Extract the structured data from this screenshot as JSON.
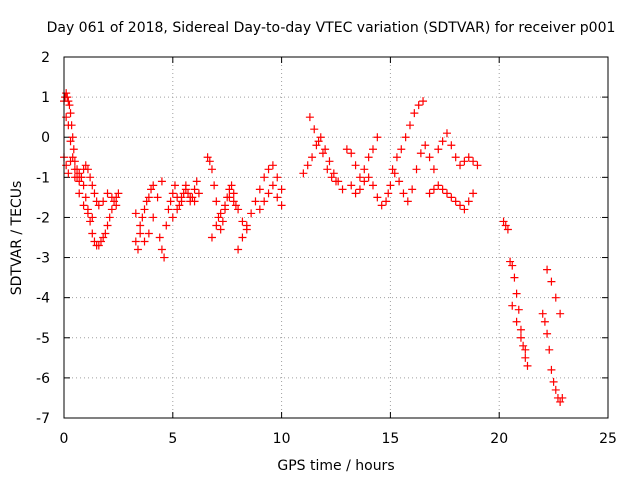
{
  "chart_data": {
    "type": "scatter",
    "title": "Day 061 of 2018, Sidereal Day-to-day VTEC variation (SDTVAR) for receiver p001",
    "xlabel": "GPS time / hours",
    "ylabel": "SDTVAR / TECUs",
    "xlim": [
      0,
      25
    ],
    "ylim": [
      -7,
      2
    ],
    "xticks": [
      "0",
      "5",
      "10",
      "15",
      "20",
      "25"
    ],
    "yticks": [
      "-7",
      "-6",
      "-5",
      "-4",
      "-3",
      "-2",
      "-1",
      "0",
      "1",
      "2"
    ],
    "grid": true,
    "marker": "+",
    "color": "#ff0000",
    "series": [
      {
        "name": "p001",
        "x": [
          0.0,
          0.05,
          0.1,
          0.15,
          0.2,
          0.25,
          0.3,
          0.35,
          0.4,
          0.45,
          0.5,
          0.6,
          0.7,
          0.8,
          0.9,
          1.0,
          1.1,
          1.2,
          1.3,
          1.4,
          1.5,
          1.6,
          1.7,
          1.8,
          1.9,
          2.0,
          2.1,
          2.2,
          2.3,
          2.4,
          2.5,
          0.1,
          0.2,
          0.3,
          0.4,
          0.5,
          0.6,
          0.7,
          0.8,
          0.9,
          1.0,
          1.1,
          1.2,
          1.3,
          1.4,
          1.5,
          1.6,
          1.8,
          2.0,
          2.2,
          2.4,
          0.0,
          0.1,
          0.2,
          0.3,
          0.5,
          0.7,
          0.9,
          1.1,
          1.3,
          3.3,
          3.4,
          3.5,
          3.6,
          3.7,
          3.8,
          3.9,
          4.0,
          4.1,
          3.3,
          3.5,
          3.7,
          3.9,
          4.1,
          4.3,
          4.5,
          4.4,
          4.5,
          4.6,
          4.7,
          4.8,
          4.9,
          5.0,
          5.1,
          5.2,
          5.3,
          5.4,
          5.5,
          5.6,
          5.7,
          5.8,
          5.9,
          6.0,
          6.1,
          5.0,
          5.2,
          5.4,
          5.6,
          5.8,
          6.0,
          6.2,
          6.6,
          6.7,
          6.8,
          6.9,
          7.0,
          7.1,
          7.2,
          7.3,
          7.4,
          7.5,
          7.6,
          7.7,
          7.8,
          7.9,
          6.8,
          7.0,
          7.2,
          7.4,
          7.6,
          7.8,
          8.0,
          8.2,
          8.4,
          8.0,
          8.2,
          8.4,
          8.6,
          8.8,
          9.0,
          9.2,
          9.4,
          9.6,
          9.8,
          10.0,
          9.0,
          9.2,
          9.4,
          9.6,
          9.8,
          10.0,
          11.0,
          11.2,
          11.4,
          11.6,
          11.8,
          12.0,
          12.2,
          12.4,
          12.6,
          12.8,
          11.3,
          11.5,
          11.7,
          11.9,
          12.1,
          12.3,
          12.5,
          13.0,
          13.2,
          13.4,
          13.6,
          13.8,
          14.0,
          14.2,
          14.4,
          13.2,
          13.4,
          13.6,
          13.8,
          14.0,
          14.2,
          14.4,
          14.6,
          14.8,
          14.9,
          15.0,
          15.1,
          15.3,
          15.5,
          15.7,
          15.9,
          16.1,
          16.3,
          16.5,
          15.2,
          15.4,
          15.6,
          15.8,
          16.0,
          16.2,
          16.4,
          16.6,
          16.8,
          17.0,
          17.2,
          17.4,
          17.6,
          17.8,
          18.0,
          18.2,
          18.4,
          18.6,
          18.8,
          19.0,
          16.8,
          17.0,
          17.2,
          17.4,
          17.6,
          17.8,
          18.0,
          18.2,
          18.4,
          18.6,
          18.8,
          20.2,
          20.3,
          20.4,
          20.5,
          20.6,
          20.7,
          20.8,
          20.9,
          21.0,
          21.1,
          21.2,
          21.3,
          20.6,
          20.8,
          21.0,
          21.2,
          22.0,
          22.1,
          22.2,
          22.3,
          22.4,
          22.5,
          22.6,
          22.7,
          22.8,
          22.9,
          22.2,
          22.4,
          22.6,
          22.8
        ],
        "y": [
          0.9,
          1.0,
          1.1,
          1.0,
          0.9,
          0.8,
          0.6,
          0.3,
          0.0,
          -0.3,
          -0.6,
          -0.8,
          -0.9,
          -1.0,
          -1.2,
          -1.5,
          -1.8,
          -2.1,
          -2.4,
          -2.6,
          -2.7,
          -2.7,
          -2.6,
          -2.5,
          -2.4,
          -2.2,
          -2.0,
          -1.8,
          -1.6,
          -1.5,
          -1.4,
          0.5,
          0.3,
          -0.1,
          -0.5,
          -0.8,
          -1.0,
          -1.1,
          -1.0,
          -0.8,
          -0.7,
          -0.8,
          -1.0,
          -1.2,
          -1.4,
          -1.6,
          -1.7,
          -1.6,
          -1.4,
          -1.5,
          -1.7,
          -0.5,
          -0.7,
          -0.9,
          -0.6,
          -1.0,
          -1.4,
          -1.7,
          -1.9,
          -2.0,
          -2.6,
          -2.8,
          -2.4,
          -2.0,
          -1.8,
          -1.6,
          -1.5,
          -1.3,
          -1.2,
          -1.9,
          -2.2,
          -2.6,
          -2.4,
          -2.0,
          -1.5,
          -1.1,
          -2.5,
          -2.8,
          -3.0,
          -2.2,
          -1.8,
          -1.6,
          -1.4,
          -1.2,
          -1.5,
          -1.7,
          -1.6,
          -1.4,
          -1.2,
          -1.4,
          -1.6,
          -1.5,
          -1.3,
          -1.1,
          -2.0,
          -1.8,
          -1.5,
          -1.3,
          -1.5,
          -1.6,
          -1.4,
          -0.5,
          -0.6,
          -0.8,
          -1.2,
          -1.6,
          -2.0,
          -2.3,
          -2.1,
          -1.8,
          -1.5,
          -1.3,
          -1.2,
          -1.4,
          -1.7,
          -2.5,
          -2.2,
          -1.9,
          -1.7,
          -1.5,
          -1.6,
          -1.8,
          -2.1,
          -2.3,
          -2.8,
          -2.5,
          -2.2,
          -1.9,
          -1.6,
          -1.3,
          -1.0,
          -0.8,
          -0.7,
          -1.0,
          -1.3,
          -1.8,
          -1.6,
          -1.4,
          -1.2,
          -1.5,
          -1.7,
          -0.9,
          -0.7,
          -0.5,
          -0.2,
          0.0,
          -0.3,
          -0.6,
          -0.9,
          -1.1,
          -1.3,
          0.5,
          0.2,
          -0.1,
          -0.4,
          -0.8,
          -1.0,
          -1.1,
          -0.3,
          -0.4,
          -0.7,
          -1.0,
          -0.8,
          -0.5,
          -0.3,
          0.0,
          -1.2,
          -1.4,
          -1.3,
          -1.1,
          -1.0,
          -1.2,
          -1.5,
          -1.7,
          -1.6,
          -1.4,
          -1.2,
          -0.8,
          -0.5,
          -0.3,
          0.0,
          0.3,
          0.6,
          0.8,
          0.9,
          -0.9,
          -1.1,
          -1.4,
          -1.6,
          -1.3,
          -0.8,
          -0.4,
          -0.2,
          -0.5,
          -0.8,
          -0.3,
          -0.1,
          0.1,
          -0.2,
          -0.5,
          -0.7,
          -0.6,
          -0.5,
          -0.6,
          -0.7,
          -1.4,
          -1.3,
          -1.2,
          -1.3,
          -1.4,
          -1.5,
          -1.6,
          -1.7,
          -1.8,
          -1.6,
          -1.4,
          -2.1,
          -2.2,
          -2.3,
          -3.1,
          -3.2,
          -3.5,
          -3.9,
          -4.3,
          -4.8,
          -5.2,
          -5.5,
          -5.7,
          -4.2,
          -4.6,
          -5.0,
          -5.3,
          -4.4,
          -4.6,
          -4.9,
          -5.3,
          -5.8,
          -6.1,
          -6.3,
          -6.5,
          -6.6,
          -6.5,
          -3.3,
          -3.6,
          -4.0,
          -4.4
        ]
      }
    ]
  }
}
